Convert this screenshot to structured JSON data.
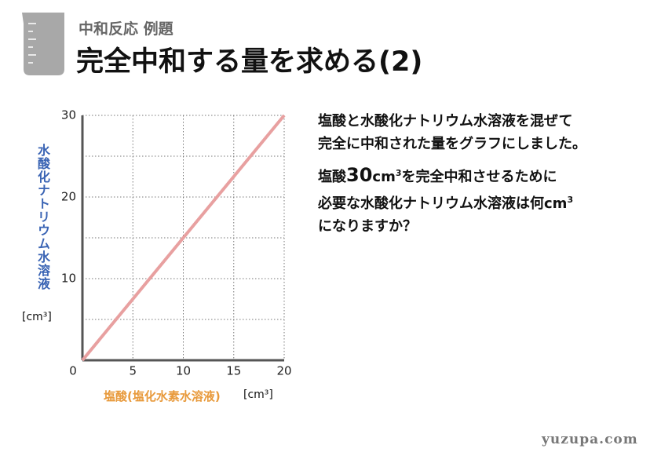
{
  "header": {
    "subtitle": "中和反応 例題",
    "title": "完全中和する量を求める(2)"
  },
  "question": {
    "p1": [
      "塩酸と水酸化ナトリウム水溶液を混ぜて",
      "完全に中和された量をグラフにしました。"
    ],
    "p2": {
      "line1": [
        "塩酸",
        "30",
        "cm",
        "3",
        "を完全中和させるために"
      ],
      "line2": [
        "必要な水酸化ナトリウム水溶液は何cm",
        "3"
      ],
      "line3": "になりますか？"
    }
  },
  "footer": "yuzupa.com",
  "chart_data": {
    "type": "line",
    "x_label": "塩酸(塩化水素水溶液)",
    "x_unit": "[cm³]",
    "y_label": "水酸化ナトリウム水溶液",
    "y_unit": "[cm³]",
    "x": [
      0,
      20
    ],
    "series": [
      {
        "color": "#e8a0a0",
        "values": [
          0,
          30
        ]
      }
    ],
    "xlim": [
      0,
      20
    ],
    "ylim": [
      0,
      30
    ],
    "xticks": [
      0,
      5,
      10,
      15,
      20
    ],
    "yticks": [
      10,
      20,
      30
    ],
    "minor_yticks": [
      5,
      15,
      25
    ],
    "grid": true
  }
}
